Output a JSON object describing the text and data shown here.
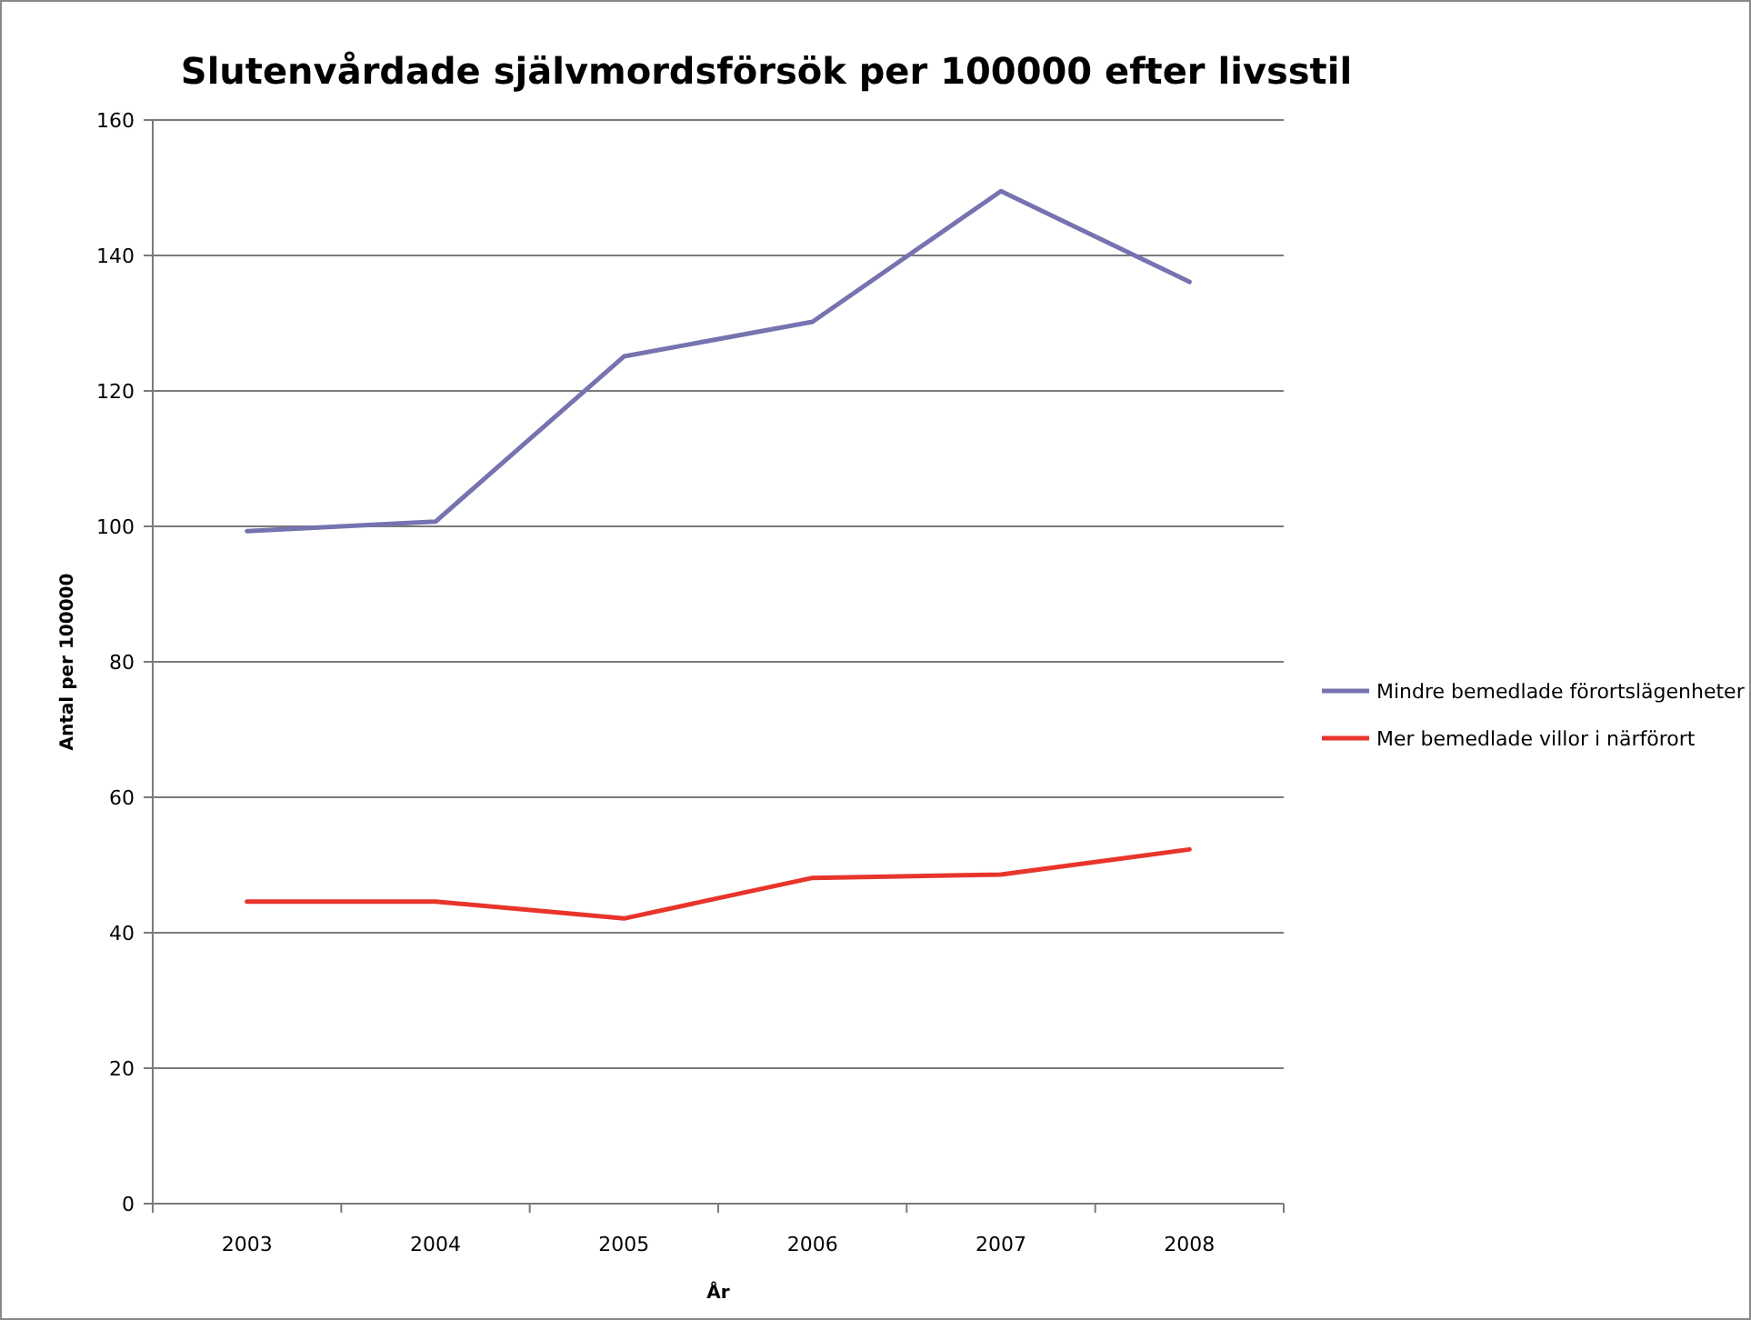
{
  "chart_data": {
    "type": "line",
    "title": "Slutenvårdade självmordsförsök per 100000 efter livsstil",
    "xlabel": "År",
    "ylabel": "Antal per 100000",
    "categories": [
      "2003",
      "2004",
      "2005",
      "2006",
      "2007",
      "2008"
    ],
    "series": [
      {
        "name": "Mindre bemedlade förortslägenheter",
        "color": "#7673b0",
        "values": [
          99.3,
          100.7,
          125.1,
          130.2,
          149.5,
          136.1
        ]
      },
      {
        "name": "Mer bemedlade villor i närförort",
        "color": "#e8352b",
        "values": [
          44.6,
          44.6,
          42.1,
          48.1,
          48.6,
          52.3
        ]
      }
    ],
    "ylim": [
      0,
      160
    ],
    "yticks": [
      0,
      20,
      40,
      60,
      80,
      100,
      120,
      140,
      160
    ],
    "grid": "y",
    "legend": "right",
    "marker": "none",
    "line_style": "solid"
  }
}
